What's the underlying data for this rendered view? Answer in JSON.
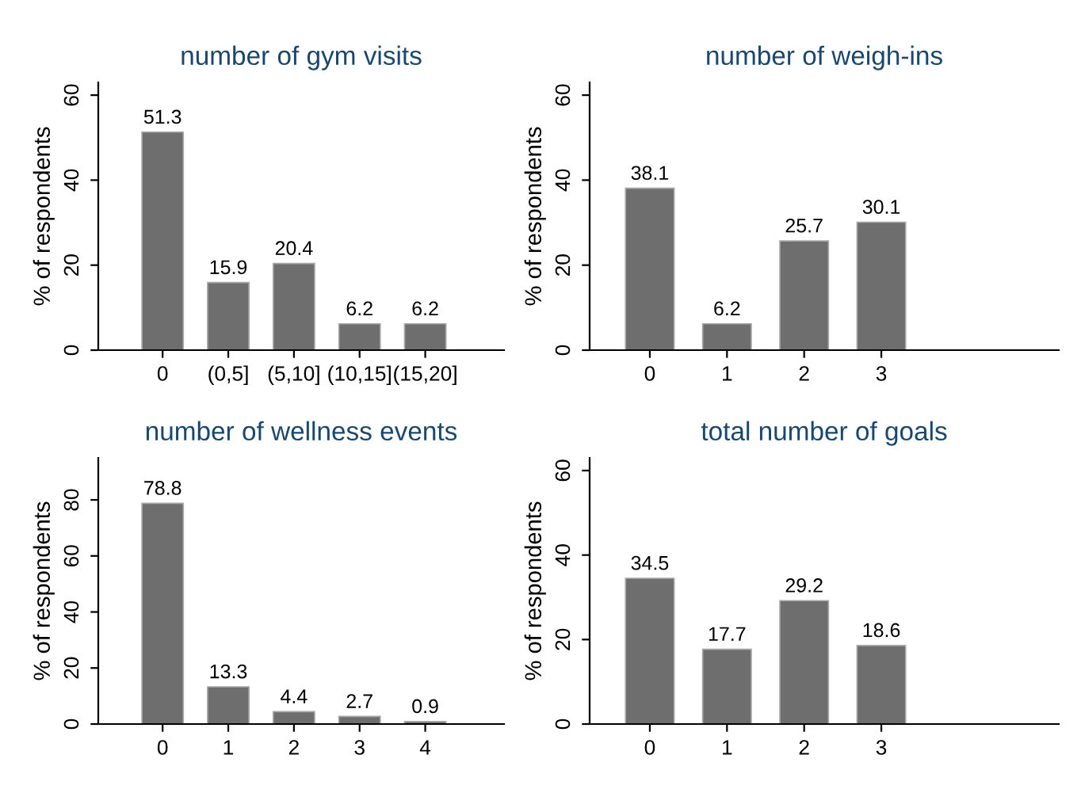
{
  "chart_data": [
    {
      "type": "bar",
      "title": "number of gym visits",
      "ylabel": "% of respondents",
      "categories": [
        "0",
        "(0,5]",
        "(5,10]",
        "(10,15]",
        "(15,20]"
      ],
      "values": [
        51.3,
        15.9,
        20.4,
        6.2,
        6.2
      ],
      "color": "#6e6e6e",
      "ylim": [
        0,
        63
      ],
      "yticks": [
        0,
        20,
        40,
        60
      ],
      "data_labels": true,
      "grid": false
    },
    {
      "type": "bar",
      "title": "number of weigh-ins",
      "ylabel": "% of respondents",
      "categories": [
        "0",
        "1",
        "2",
        "3"
      ],
      "values": [
        38.1,
        6.2,
        25.7,
        30.1
      ],
      "color": "#6e6e6e",
      "ylim": [
        0,
        63
      ],
      "yticks": [
        0,
        20,
        40,
        60
      ],
      "data_labels": true,
      "grid": false
    },
    {
      "type": "bar",
      "title": "number of wellness events",
      "ylabel": "% of respondents",
      "categories": [
        "0",
        "1",
        "2",
        "3",
        "4"
      ],
      "values": [
        78.8,
        13.3,
        4.4,
        2.7,
        0.9
      ],
      "color": "#6e6e6e",
      "ylim": [
        0,
        95
      ],
      "yticks": [
        0,
        20,
        40,
        60,
        80
      ],
      "data_labels": true,
      "grid": false
    },
    {
      "type": "bar",
      "title": "total number of goals",
      "ylabel": "% of respondents",
      "categories": [
        "0",
        "1",
        "2",
        "3"
      ],
      "values": [
        34.5,
        17.7,
        29.2,
        18.6
      ],
      "color": "#6e6e6e",
      "ylim": [
        0,
        63
      ],
      "yticks": [
        0,
        20,
        40,
        60
      ],
      "data_labels": true,
      "grid": false
    }
  ]
}
